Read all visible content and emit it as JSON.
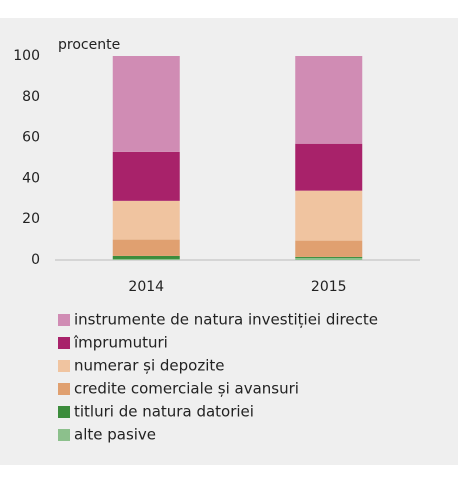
{
  "chart_data": {
    "type": "stacked_bar",
    "y_label": "procente",
    "categories": [
      "2014",
      "2015"
    ],
    "series": [
      {
        "name": "instrumente de natura investiției directe",
        "color": "#d08cb4",
        "values": [
          47,
          43
        ]
      },
      {
        "name": "împrumuturi",
        "color": "#a8226a",
        "values": [
          24,
          23
        ]
      },
      {
        "name": "numerar și depozite",
        "color": "#f0c4a0",
        "values": [
          19,
          24.5
        ]
      },
      {
        "name": "credite comerciale și avansuri",
        "color": "#e0a070",
        "values": [
          8,
          8
        ]
      },
      {
        "name": "titluri de natura datoriei",
        "color": "#3c8c3c",
        "values": [
          1.5,
          0.5
        ]
      },
      {
        "name": "alte pasive",
        "color": "#8cc08c",
        "values": [
          0.5,
          1
        ]
      }
    ],
    "ylim": [
      0,
      100
    ],
    "yticks": [
      0,
      20,
      40,
      60,
      80,
      100
    ]
  }
}
